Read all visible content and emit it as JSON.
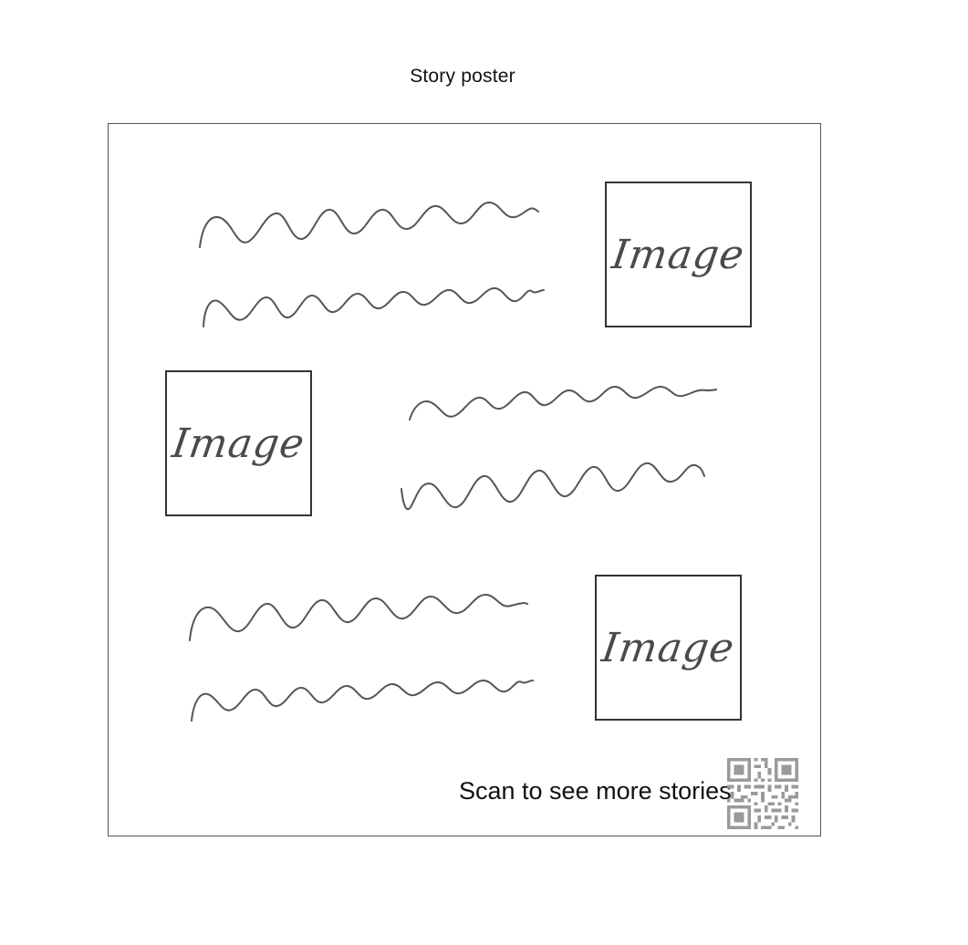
{
  "title": "Story poster",
  "image_placeholders": [
    {
      "label": "Image"
    },
    {
      "label": "Image"
    },
    {
      "label": "Image"
    }
  ],
  "text_lines": [
    {
      "kind": "squiggle-text-line"
    },
    {
      "kind": "squiggle-text-line"
    },
    {
      "kind": "squiggle-text-line"
    },
    {
      "kind": "squiggle-text-line"
    },
    {
      "kind": "squiggle-text-line"
    },
    {
      "kind": "squiggle-text-line"
    }
  ],
  "footer": {
    "scan_text": "Scan to see more stories",
    "qr_icon": "qr-code-icon"
  },
  "colors": {
    "stroke": "#555555",
    "text": "#111111",
    "qr": "#9a9a9a"
  }
}
